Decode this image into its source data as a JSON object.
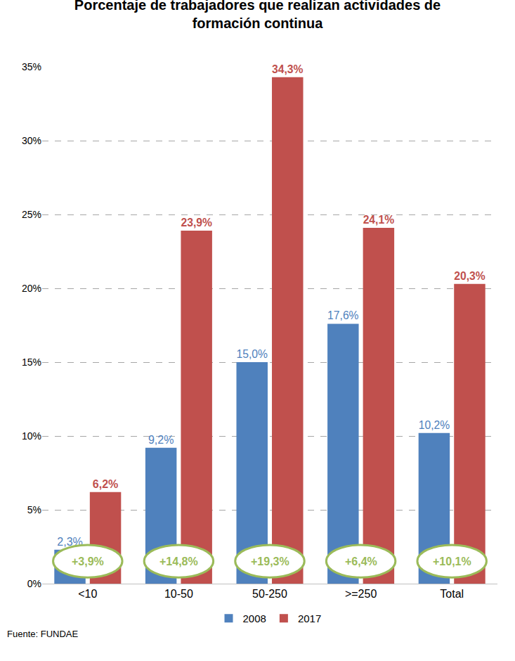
{
  "chart_data": {
    "type": "bar",
    "title": "Porcentaje de trabajadores que realizan actividades de formación continua",
    "categories": [
      "<10",
      "10-50",
      "50-250",
      ">=250",
      "Total"
    ],
    "series": [
      {
        "name": "2008",
        "color": "#4f81bd",
        "values": [
          2.3,
          9.2,
          15.0,
          17.6,
          10.2
        ],
        "value_labels": [
          "2,3%",
          "9,2%",
          "15,0%",
          "17,6%",
          "10,2%"
        ]
      },
      {
        "name": "2017",
        "color": "#c0504d",
        "values": [
          6.2,
          23.9,
          34.3,
          24.1,
          20.3
        ],
        "value_labels": [
          "6,2%",
          "23,9%",
          "34,3%",
          "24,1%",
          "20,3%"
        ]
      }
    ],
    "annotations": [
      {
        "category": "<10",
        "text": "+3,9%"
      },
      {
        "category": "10-50",
        "text": "+14,8%"
      },
      {
        "category": "50-250",
        "text": "+19,3%"
      },
      {
        "category": ">=250",
        "text": "+6,4%"
      },
      {
        "category": "Total",
        "text": "+10,1%"
      }
    ],
    "source": "Fuente: FUNDAE",
    "ylim": [
      0,
      35
    ],
    "yticks": [
      {
        "value": 0,
        "label": "0%"
      },
      {
        "value": 5,
        "label": "5%"
      },
      {
        "value": 10,
        "label": "10%"
      },
      {
        "value": 15,
        "label": "15%"
      },
      {
        "value": 20,
        "label": "20%"
      },
      {
        "value": 25,
        "label": "25%"
      },
      {
        "value": 30,
        "label": "30%"
      },
      {
        "value": 35,
        "label": "35%"
      }
    ],
    "grid": true,
    "legend": "bottom",
    "data_labels": true
  }
}
